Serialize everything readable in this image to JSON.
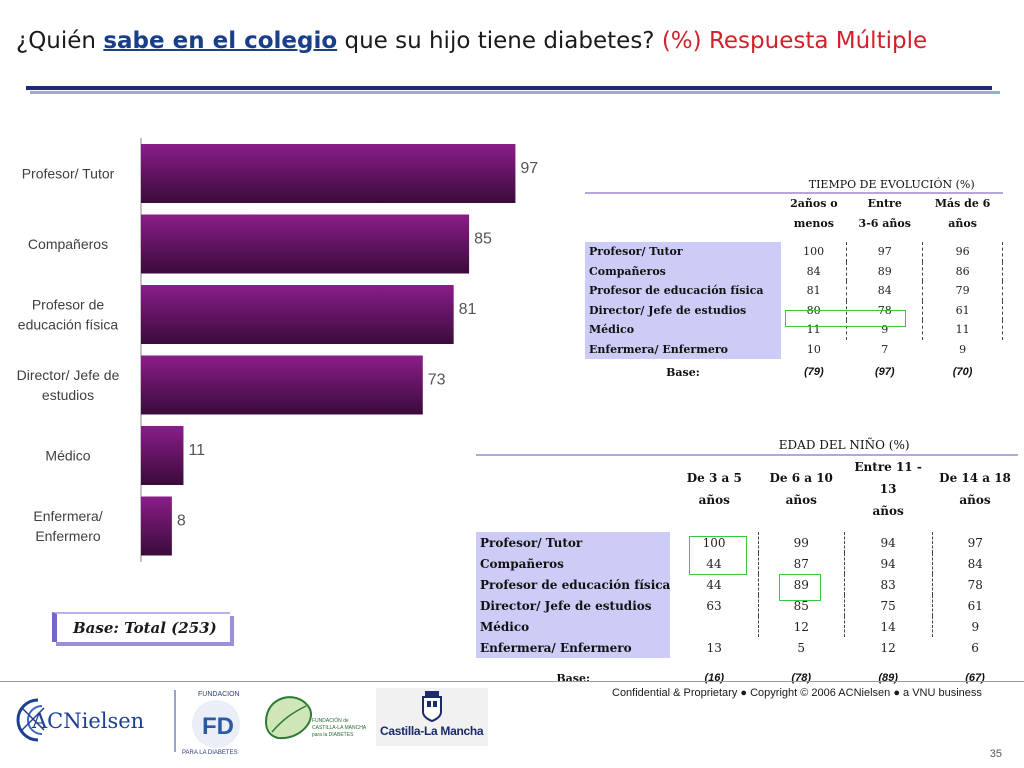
{
  "title": {
    "prefix": "¿Quién ",
    "bold": "sabe en el colegio",
    "middle": " que su  hijo tiene diabetes? ",
    "red": "(%) Respuesta Múltiple"
  },
  "chart_data": {
    "type": "bar",
    "orientation": "horizontal",
    "categories": [
      "Profesor/ Tutor",
      "Compañeros",
      "Profesor de educación física",
      "Director/ Jefe de estudios",
      "Médico",
      "Enfermera/ Enfermero"
    ],
    "category_lines": [
      [
        "Profesor/ Tutor"
      ],
      [
        "Compañeros"
      ],
      [
        "Profesor de",
        "educación física"
      ],
      [
        "Director/ Jefe de",
        "estudios"
      ],
      [
        "Médico"
      ],
      [
        "Enfermera/",
        "Enfermero"
      ]
    ],
    "values": [
      97,
      85,
      81,
      73,
      11,
      8
    ],
    "xlim": [
      0,
      100
    ],
    "grid": false,
    "colors": {
      "bar_top": "#8a1d8a",
      "bar_bottom": "#3a0b3a"
    }
  },
  "base_total": "Base: Total (253)",
  "table_evolucion": {
    "title": "TIEMPO DE EVOLUCIÓN (%)",
    "columns": [
      {
        "line1": "2años o",
        "line2": "menos"
      },
      {
        "line1": "Entre",
        "line2": "3-6 años"
      },
      {
        "line1": "Más de 6",
        "line2": "años"
      }
    ],
    "rows": [
      {
        "label": "Profesor/ Tutor",
        "values": [
          "100",
          "97",
          "96"
        ]
      },
      {
        "label": "Compañeros",
        "values": [
          "84",
          "89",
          "86"
        ]
      },
      {
        "label": "Profesor de educación física",
        "values": [
          "81",
          "84",
          "79"
        ]
      },
      {
        "label": "Director/ Jefe de estudios",
        "values": [
          "80",
          "78",
          "61"
        ]
      },
      {
        "label": "Médico",
        "values": [
          "11",
          "9",
          "11"
        ]
      },
      {
        "label": "Enfermera/ Enfermero",
        "values": [
          "10",
          "7",
          "9"
        ]
      }
    ],
    "base_label": "Base:",
    "bases": [
      "(79)",
      "(97)",
      "(70)"
    ]
  },
  "table_edad": {
    "title": "EDAD DEL NIÑO (%)",
    "columns": [
      {
        "line1": "De 3 a 5",
        "line2": "años"
      },
      {
        "line1": "De 6 a 10",
        "line2": "años"
      },
      {
        "line1": "Entre 11 - 13",
        "line2": "años"
      },
      {
        "line1": "De 14 a 18",
        "line2": "años"
      }
    ],
    "rows": [
      {
        "label": "Profesor/ Tutor",
        "values": [
          "100",
          "99",
          "94",
          "97"
        ]
      },
      {
        "label": "Compañeros",
        "values": [
          "44",
          "87",
          "94",
          "84"
        ]
      },
      {
        "label": "Profesor de educación física",
        "values": [
          "44",
          "89",
          "83",
          "78"
        ]
      },
      {
        "label": "Director/ Jefe de estudios",
        "values": [
          "63",
          "85",
          "75",
          "61"
        ]
      },
      {
        "label": "Médico",
        "values": [
          "",
          "12",
          "14",
          "9"
        ]
      },
      {
        "label": "Enfermera/ Enfermero",
        "values": [
          "13",
          "5",
          "12",
          "6"
        ]
      }
    ],
    "base_label": "Base:",
    "bases": [
      "(16)",
      "(78)",
      "(89)",
      "(67)"
    ]
  },
  "footer": {
    "text": "Confidential & Proprietary ● Copyright © 2006 ACNielsen ● a VNU business",
    "page_number": "35"
  },
  "logos": {
    "acnielsen": "ACNielsen",
    "fundacion": "FUNDACION",
    "para_la_diabetes": "PARA LA DIABETES",
    "fundacion_clm_lines": [
      "FUNDACIÓN de",
      "CASTILLA-LA MANCHA",
      "para la DIABETES"
    ],
    "castilla": "Castilla-La Mancha"
  }
}
